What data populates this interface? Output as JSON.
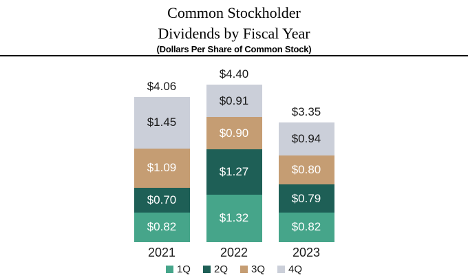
{
  "header": {
    "title": "Common Stockholder\nDividends by Fiscal Year",
    "subtitle": "(Dollars Per Share of Common Stock)"
  },
  "chart_data": {
    "type": "bar",
    "stacked": true,
    "title": "Common Stockholder Dividends by Fiscal Year",
    "subtitle": "(Dollars Per Share of Common Stock)",
    "categories": [
      "2021",
      "2022",
      "2023"
    ],
    "series": [
      {
        "name": "1Q",
        "color": "#46a58a",
        "label_color": "#ffffff",
        "values": [
          0.82,
          1.32,
          0.82
        ]
      },
      {
        "name": "2Q",
        "color": "#1e5f56",
        "label_color": "#ffffff",
        "values": [
          0.7,
          1.27,
          0.79
        ]
      },
      {
        "name": "3Q",
        "color": "#c59d73",
        "label_color": "#ffffff",
        "values": [
          1.09,
          0.9,
          0.8
        ]
      },
      {
        "name": "4Q",
        "color": "#cbcfd9",
        "label_color": "#1a1a1a",
        "values": [
          1.45,
          0.91,
          0.94
        ]
      }
    ],
    "totals": [
      4.06,
      4.4,
      3.35
    ],
    "total_labels": [
      "$4.06",
      "$4.40",
      "$3.35"
    ],
    "segment_labels": [
      [
        "$0.82",
        "$0.70",
        "$1.09",
        "$1.45"
      ],
      [
        "$1.32",
        "$1.27",
        "$0.90",
        "$0.91"
      ],
      [
        "$0.82",
        "$0.79",
        "$0.80",
        "$0.94"
      ]
    ],
    "legend_position": "bottom",
    "ylim": [
      0,
      4.4
    ]
  }
}
